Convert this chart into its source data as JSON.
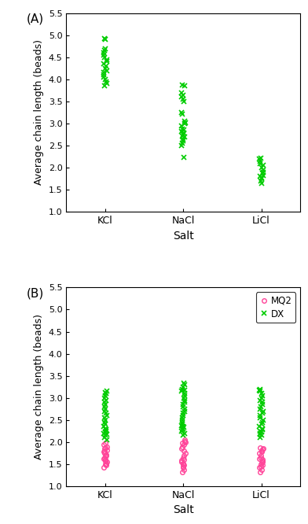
{
  "panel_A": {
    "title": "(A)",
    "xlabel": "Salt",
    "ylabel": "Average chain length (beads)",
    "ylim": [
      1.0,
      5.5
    ],
    "yticks": [
      1.0,
      1.5,
      2.0,
      2.5,
      3.0,
      3.5,
      4.0,
      4.5,
      5.0,
      5.5
    ],
    "xtick_labels": [
      "KCl",
      "NaCl",
      "LiCl"
    ],
    "xtick_positions": [
      1,
      2,
      3
    ],
    "GQ2_KCl": [
      3.85,
      3.9,
      3.95,
      4.0,
      4.05,
      4.1,
      4.15,
      4.2,
      4.25,
      4.3,
      4.35,
      4.4,
      4.45,
      4.5,
      4.55,
      4.6,
      4.65,
      4.7,
      4.9,
      4.92
    ],
    "GQ2_NaCl": [
      2.23,
      2.5,
      2.55,
      2.6,
      2.65,
      2.7,
      2.72,
      2.75,
      2.78,
      2.82,
      2.85,
      2.88,
      2.95,
      3.0,
      3.02,
      3.05,
      3.22,
      3.25,
      3.5,
      3.55,
      3.6,
      3.65,
      3.7,
      3.85,
      3.87
    ],
    "GQ2_LiCl": [
      1.65,
      1.7,
      1.75,
      1.78,
      1.8,
      1.83,
      1.87,
      1.9,
      1.95,
      2.0,
      2.05,
      2.1,
      2.15,
      2.2,
      2.22
    ],
    "color": "#00cc00",
    "marker": "x",
    "markersize": 4
  },
  "panel_B": {
    "title": "(B)",
    "xlabel": "Salt",
    "ylabel": "Average chain length (beads)",
    "ylim": [
      1.0,
      5.5
    ],
    "yticks": [
      1.0,
      1.5,
      2.0,
      2.5,
      3.0,
      3.5,
      4.0,
      4.5,
      5.0,
      5.5
    ],
    "xtick_labels": [
      "KCl",
      "NaCl",
      "LiCl"
    ],
    "xtick_positions": [
      1,
      2,
      3
    ],
    "MQ2_KCl": [
      1.42,
      1.48,
      1.5,
      1.52,
      1.55,
      1.57,
      1.6,
      1.62,
      1.65,
      1.68,
      1.7,
      1.72,
      1.75,
      1.78,
      1.8,
      1.82,
      1.85,
      1.88,
      1.9,
      1.95,
      1.98
    ],
    "MQ2_NaCl": [
      1.32,
      1.38,
      1.42,
      1.45,
      1.48,
      1.5,
      1.52,
      1.55,
      1.58,
      1.6,
      1.65,
      1.7,
      1.75,
      1.8,
      1.85,
      1.9,
      1.95,
      1.98,
      2.0,
      2.02,
      2.05
    ],
    "MQ2_LiCl": [
      1.32,
      1.38,
      1.42,
      1.45,
      1.48,
      1.5,
      1.53,
      1.55,
      1.57,
      1.6,
      1.63,
      1.65,
      1.7,
      1.75,
      1.78,
      1.8,
      1.83,
      1.85,
      1.88
    ],
    "DX_KCl": [
      2.05,
      2.1,
      2.15,
      2.18,
      2.2,
      2.23,
      2.25,
      2.28,
      2.3,
      2.35,
      2.4,
      2.45,
      2.5,
      2.55,
      2.6,
      2.65,
      2.7,
      2.75,
      2.8,
      2.85,
      2.9,
      2.95,
      3.0,
      3.05,
      3.1,
      3.12,
      3.15
    ],
    "DX_NaCl": [
      2.15,
      2.2,
      2.25,
      2.28,
      2.3,
      2.33,
      2.35,
      2.38,
      2.4,
      2.45,
      2.5,
      2.55,
      2.6,
      2.65,
      2.7,
      2.75,
      2.8,
      2.85,
      2.9,
      2.95,
      3.0,
      3.05,
      3.1,
      3.15,
      3.18,
      3.2,
      3.25,
      3.3,
      3.33
    ],
    "DX_LiCl": [
      2.1,
      2.15,
      2.18,
      2.2,
      2.23,
      2.25,
      2.28,
      2.3,
      2.35,
      2.4,
      2.45,
      2.5,
      2.55,
      2.6,
      2.65,
      2.7,
      2.75,
      2.8,
      2.85,
      2.9,
      2.95,
      3.0,
      3.05,
      3.1,
      3.15,
      3.18,
      3.2
    ],
    "mq2_color": "#ff4499",
    "dx_color": "#00cc00",
    "mq2_marker": "o",
    "dx_marker": "x",
    "markersize": 4
  },
  "fig_width": 3.92,
  "fig_height": 6.66,
  "dpi": 100
}
